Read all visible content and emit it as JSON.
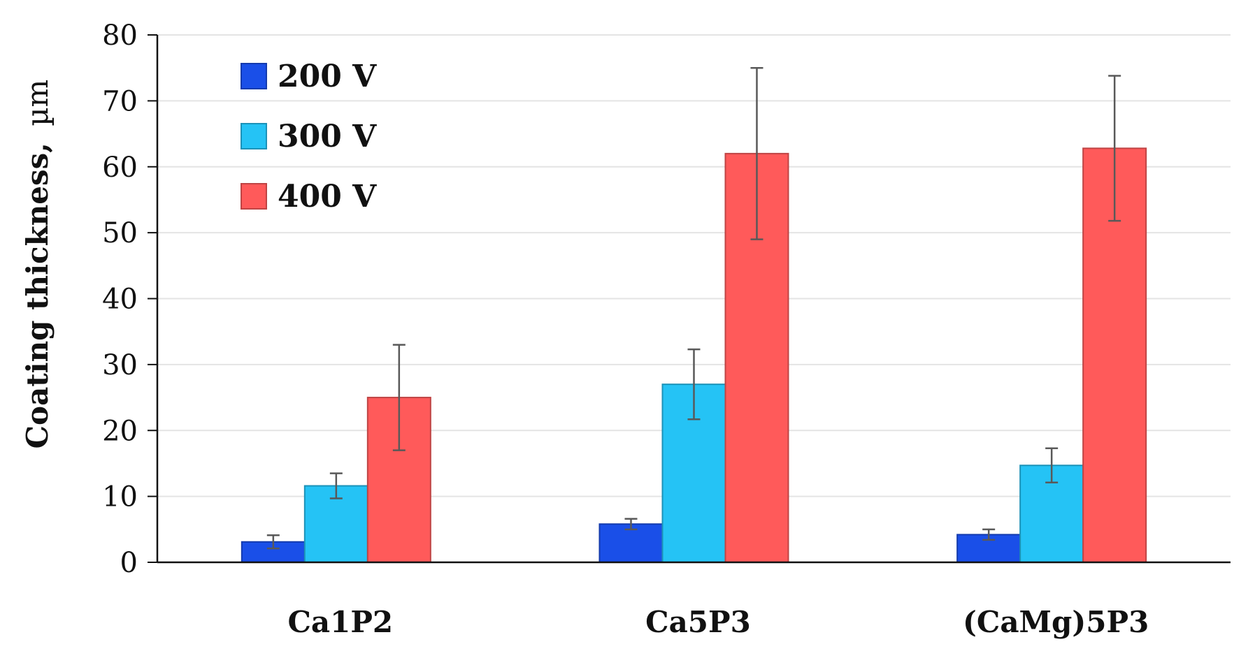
{
  "chart_data": {
    "type": "bar",
    "title": "",
    "xlabel": "",
    "ylabel_bold": "Coating thickness,",
    "ylabel_unit": "µm",
    "ylim": [
      0,
      80
    ],
    "yticks": [
      0,
      10,
      20,
      30,
      40,
      50,
      60,
      70,
      80
    ],
    "grid": true,
    "legend_position": "top-left",
    "categories": [
      "Ca1P2",
      "Ca5P3",
      "(CaMg)5P3"
    ],
    "series": [
      {
        "name": "200 V",
        "color": "#1a4fe8",
        "values": [
          3.1,
          5.8,
          4.2
        ],
        "errors": [
          1.0,
          0.8,
          0.8
        ]
      },
      {
        "name": "300 V",
        "color": "#25c3f5",
        "values": [
          11.6,
          27.0,
          14.7
        ],
        "errors": [
          1.9,
          5.3,
          2.6
        ]
      },
      {
        "name": "400 V",
        "color": "#ff5a5a",
        "values": [
          25.0,
          62.0,
          62.8
        ],
        "errors": [
          8.0,
          13.0,
          11.0
        ]
      }
    ]
  }
}
